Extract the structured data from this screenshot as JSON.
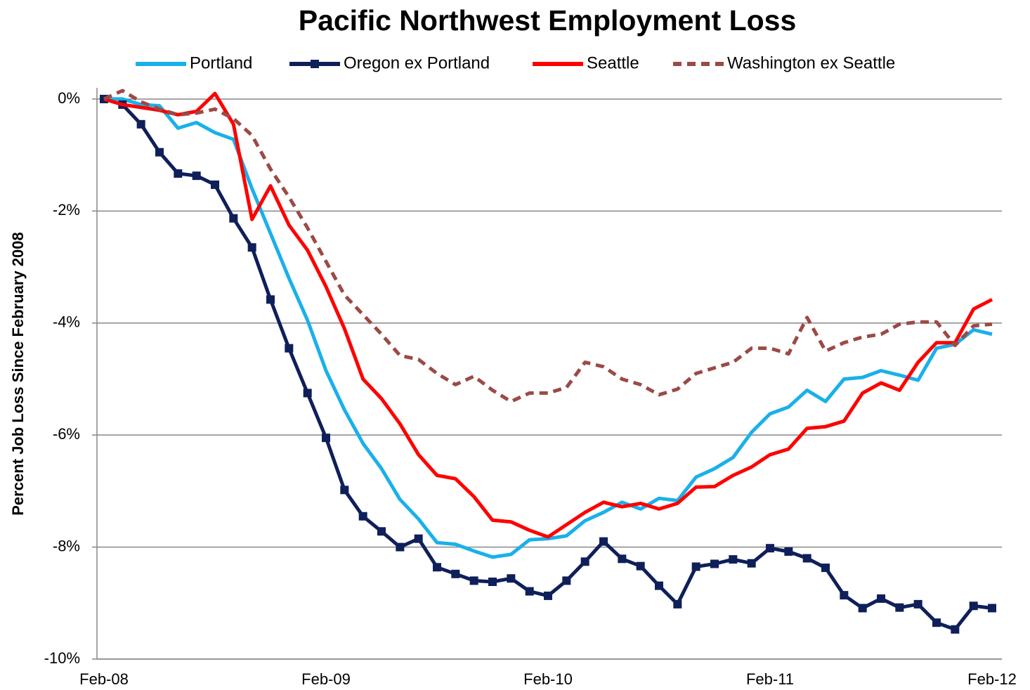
{
  "chart_data": {
    "type": "line",
    "title": "Pacific Northwest Employment Loss",
    "ylabel": "Percent Job Loss Since February 2008",
    "categories": [
      "Feb-08",
      null,
      null,
      null,
      null,
      null,
      null,
      null,
      null,
      null,
      null,
      null,
      "Feb-09",
      null,
      null,
      null,
      null,
      null,
      null,
      null,
      null,
      null,
      null,
      null,
      "Feb-10",
      null,
      null,
      null,
      null,
      null,
      null,
      null,
      null,
      null,
      null,
      null,
      "Feb-11",
      null,
      null,
      null,
      null,
      null,
      null,
      null,
      null,
      null,
      null,
      null,
      "Feb-12"
    ],
    "ylim": [
      -10,
      0.2
    ],
    "yticks": [
      {
        "value": 0,
        "label": "0%"
      },
      {
        "value": -2,
        "label": "-2%"
      },
      {
        "value": -4,
        "label": "-4%"
      },
      {
        "value": -6,
        "label": "-6%"
      },
      {
        "value": -8,
        "label": "-8%"
      },
      {
        "value": -10,
        "label": "-10%"
      }
    ],
    "grid": true,
    "legend": "top",
    "series": [
      {
        "name": "Portland",
        "color": "#1ab0ea",
        "values": [
          0,
          0,
          -0.1,
          -0.12,
          -0.52,
          -0.42,
          -0.6,
          -0.72,
          -1.6,
          -2.4,
          -3.2,
          -3.95,
          -4.85,
          -5.55,
          -6.15,
          -6.6,
          -7.15,
          -7.5,
          -7.92,
          -7.95,
          -8.07,
          -8.18,
          -8.13,
          -7.87,
          -7.85,
          -7.8,
          -7.53,
          -7.38,
          -7.2,
          -7.32,
          -7.13,
          -7.17,
          -6.75,
          -6.6,
          -6.4,
          -5.95,
          -5.62,
          -5.5,
          -5.2,
          -5.4,
          -5.0,
          -4.97,
          -4.85,
          -4.93,
          -5.02,
          -4.45,
          -4.38,
          -4.12,
          -4.2
        ]
      },
      {
        "name": "Oregon ex Portland",
        "color": "#0f1f5a",
        "marker": "square",
        "values": [
          0,
          -0.1,
          -0.45,
          -0.95,
          -1.33,
          -1.37,
          -1.53,
          -2.13,
          -2.65,
          -3.58,
          -4.45,
          -5.25,
          -6.05,
          -6.98,
          -7.45,
          -7.72,
          -8.0,
          -7.85,
          -8.36,
          -8.48,
          -8.6,
          -8.62,
          -8.56,
          -8.79,
          -8.87,
          -8.6,
          -8.26,
          -7.9,
          -8.21,
          -8.34,
          -8.69,
          -9.02,
          -8.35,
          -8.3,
          -8.22,
          -8.29,
          -8.02,
          -8.08,
          -8.2,
          -8.37,
          -8.86,
          -9.09,
          -8.92,
          -9.08,
          -9.02,
          -9.35,
          -9.47,
          -9.05,
          -9.09
        ]
      },
      {
        "name": "Seattle",
        "color": "#ff0000",
        "values": [
          0,
          -0.1,
          -0.15,
          -0.2,
          -0.28,
          -0.22,
          0.1,
          -0.45,
          -2.15,
          -1.55,
          -2.25,
          -2.7,
          -3.35,
          -4.1,
          -5.0,
          -5.35,
          -5.8,
          -6.35,
          -6.72,
          -6.78,
          -7.1,
          -7.52,
          -7.55,
          -7.7,
          -7.82,
          -7.6,
          -7.38,
          -7.2,
          -7.28,
          -7.22,
          -7.32,
          -7.22,
          -6.93,
          -6.92,
          -6.72,
          -6.57,
          -6.35,
          -6.25,
          -5.88,
          -5.85,
          -5.75,
          -5.25,
          -5.07,
          -5.2,
          -4.7,
          -4.35,
          -4.35,
          -3.75,
          -3.58
        ]
      },
      {
        "name": "Washington ex Seattle",
        "color": "#9b4a46",
        "dashed": true,
        "values": [
          0,
          0.15,
          -0.05,
          -0.18,
          -0.28,
          -0.25,
          -0.18,
          -0.35,
          -0.65,
          -1.25,
          -1.75,
          -2.3,
          -2.9,
          -3.5,
          -3.85,
          -4.2,
          -4.58,
          -4.65,
          -4.9,
          -5.1,
          -4.95,
          -5.2,
          -5.4,
          -5.25,
          -5.25,
          -5.15,
          -4.7,
          -4.78,
          -5.0,
          -5.1,
          -5.28,
          -5.18,
          -4.9,
          -4.8,
          -4.7,
          -4.45,
          -4.45,
          -4.55,
          -3.9,
          -4.5,
          -4.35,
          -4.25,
          -4.2,
          -4.02,
          -3.98,
          -3.98,
          -4.4,
          -4.05,
          -4.02
        ]
      }
    ]
  }
}
